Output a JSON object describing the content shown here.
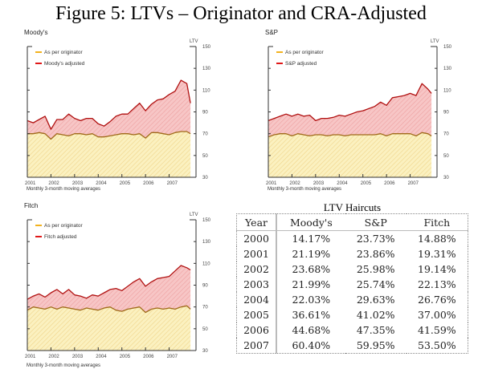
{
  "figure_title": "Figure 5:  LTVs – Originator and CRA-Adjusted",
  "colors": {
    "originator": "#f2b21e",
    "originator_line": "#a06a1a",
    "adjusted": "#e01818",
    "adjusted_line": "#b01010",
    "originator_fill": "#fbf1c0",
    "adjusted_fill": "#f7c6c6"
  },
  "chart_data": [
    {
      "type": "area",
      "title": "Moody's",
      "ylabel": "LTV",
      "xlabel": "",
      "footnote": "Monthly 3-month moving averages",
      "x_tick_labels": [
        "2001",
        "2002",
        "2003",
        "2004",
        "2005",
        "2006",
        "2007"
      ],
      "y_ticks": [
        30,
        50,
        70,
        90,
        110,
        130,
        150
      ],
      "ylim": [
        30,
        150
      ],
      "xlim": [
        2001.0,
        2008.0
      ],
      "grid": false,
      "legend_position": "top-left",
      "x": [
        2001.0,
        2001.25,
        2001.5,
        2001.75,
        2002.0,
        2002.25,
        2002.5,
        2002.75,
        2003.0,
        2003.25,
        2003.5,
        2003.75,
        2004.0,
        2004.25,
        2004.5,
        2004.75,
        2005.0,
        2005.25,
        2005.5,
        2005.75,
        2006.0,
        2006.25,
        2006.5,
        2006.75,
        2007.0,
        2007.25,
        2007.5,
        2007.75,
        2007.9
      ],
      "series": [
        {
          "name": "As per originator",
          "key": "originator",
          "values": [
            70,
            70,
            71,
            70,
            65,
            70,
            69,
            68,
            70,
            70,
            69,
            70,
            67,
            67,
            68,
            69,
            70,
            70,
            69,
            70,
            66,
            71,
            71,
            70,
            69,
            71,
            72,
            72,
            70
          ]
        },
        {
          "name": "Moody's adjusted",
          "key": "adjusted",
          "values": [
            82,
            80,
            83,
            86,
            74,
            83,
            83,
            88,
            84,
            82,
            84,
            84,
            79,
            77,
            81,
            86,
            88,
            88,
            93,
            98,
            91,
            97,
            101,
            102,
            106,
            109,
            119,
            116,
            98
          ]
        }
      ]
    },
    {
      "type": "area",
      "title": "S&P",
      "ylabel": "LTV",
      "xlabel": "",
      "footnote": "Monthly 3-month moving averages",
      "x_tick_labels": [
        "2001",
        "2002",
        "2003",
        "2004",
        "2005",
        "2006",
        "2007"
      ],
      "y_ticks": [
        30,
        50,
        70,
        90,
        110,
        130,
        150
      ],
      "ylim": [
        30,
        150
      ],
      "xlim": [
        2001.0,
        2008.0
      ],
      "grid": false,
      "legend_position": "top-left",
      "x": [
        2001.0,
        2001.25,
        2001.5,
        2001.75,
        2002.0,
        2002.25,
        2002.5,
        2002.75,
        2003.0,
        2003.25,
        2003.5,
        2003.75,
        2004.0,
        2004.25,
        2004.5,
        2004.75,
        2005.0,
        2005.25,
        2005.5,
        2005.75,
        2006.0,
        2006.25,
        2006.5,
        2006.75,
        2007.0,
        2007.25,
        2007.5,
        2007.75,
        2007.9
      ],
      "series": [
        {
          "name": "As per originator",
          "key": "originator",
          "values": [
            67,
            69,
            70,
            70,
            68,
            70,
            69,
            68,
            69,
            69,
            68,
            69,
            69,
            68,
            69,
            69,
            69,
            69,
            69,
            70,
            68,
            70,
            70,
            70,
            70,
            68,
            71,
            70,
            68
          ]
        },
        {
          "name": "S&P adjusted",
          "key": "adjusted",
          "values": [
            82,
            84,
            86,
            88,
            86,
            88,
            86,
            87,
            82,
            84,
            84,
            85,
            87,
            86,
            88,
            90,
            91,
            93,
            95,
            99,
            96,
            103,
            104,
            105,
            107,
            105,
            116,
            111,
            107
          ]
        }
      ]
    },
    {
      "type": "area",
      "title": "Fitch",
      "ylabel": "LTV",
      "xlabel": "",
      "footnote": "Monthly 3-month moving averages",
      "x_tick_labels": [
        "2001",
        "2002",
        "2003",
        "2004",
        "2005",
        "2006",
        "2007"
      ],
      "y_ticks": [
        30,
        50,
        70,
        90,
        110,
        130,
        150
      ],
      "ylim": [
        30,
        150
      ],
      "xlim": [
        2001.0,
        2008.0
      ],
      "grid": false,
      "legend_position": "top-left",
      "x": [
        2001.0,
        2001.25,
        2001.5,
        2001.75,
        2002.0,
        2002.25,
        2002.5,
        2002.75,
        2003.0,
        2003.25,
        2003.5,
        2003.75,
        2004.0,
        2004.25,
        2004.5,
        2004.75,
        2005.0,
        2005.25,
        2005.5,
        2005.75,
        2006.0,
        2006.25,
        2006.5,
        2006.75,
        2007.0,
        2007.25,
        2007.5,
        2007.75,
        2007.9
      ],
      "series": [
        {
          "name": "As per originator",
          "key": "originator",
          "values": [
            67,
            70,
            69,
            68,
            70,
            68,
            70,
            69,
            68,
            67,
            69,
            68,
            67,
            69,
            70,
            67,
            66,
            68,
            69,
            70,
            65,
            68,
            69,
            68,
            69,
            68,
            70,
            71,
            68
          ]
        },
        {
          "name": "Fitch adjusted",
          "key": "adjusted",
          "values": [
            77,
            80,
            82,
            79,
            83,
            86,
            82,
            86,
            81,
            80,
            78,
            81,
            80,
            83,
            86,
            87,
            85,
            89,
            93,
            96,
            89,
            93,
            96,
            97,
            98,
            103,
            108,
            106,
            104
          ]
        }
      ]
    }
  ],
  "table": {
    "caption": "LTV Haircuts",
    "columns": [
      "Year",
      "Moody's",
      "S&P",
      "Fitch"
    ],
    "rows": [
      [
        "2000",
        "14.17%",
        "23.73%",
        "14.88%"
      ],
      [
        "2001",
        "21.19%",
        "23.86%",
        "19.31%"
      ],
      [
        "2002",
        "23.68%",
        "25.98%",
        "19.14%"
      ],
      [
        "2003",
        "21.99%",
        "25.74%",
        "22.13%"
      ],
      [
        "2004",
        "22.03%",
        "29.63%",
        "26.76%"
      ],
      [
        "2005",
        "36.61%",
        "41.02%",
        "37.00%"
      ],
      [
        "2006",
        "44.68%",
        "47.35%",
        "41.59%"
      ],
      [
        "2007",
        "60.40%",
        "59.95%",
        "53.50%"
      ]
    ]
  }
}
